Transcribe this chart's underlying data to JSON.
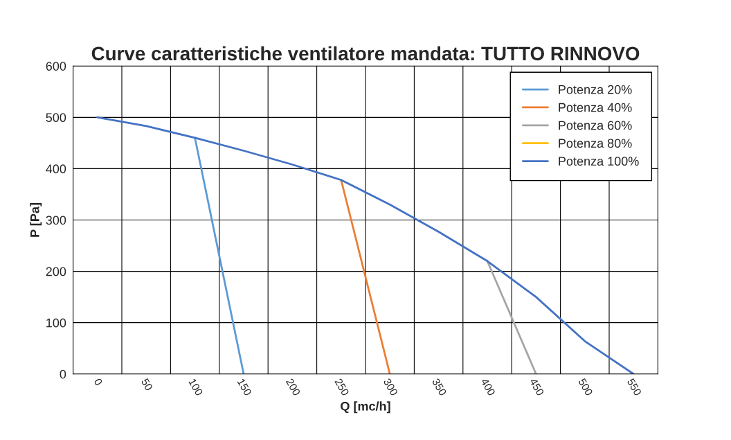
{
  "chart_data": {
    "type": "line",
    "title": "Curve caratteristiche ventilatore mandata: TUTTO RINNOVO",
    "xlabel": "Q [mc/h]",
    "ylabel": "P [Pa]",
    "xlim": [
      -25,
      575
    ],
    "xticks": [
      0,
      {
        "value": 25,
        "label": null
      },
      50,
      {
        "value": 75,
        "label": null
      },
      100,
      {
        "value": 125,
        "label": null
      },
      150,
      {
        "value": 175,
        "label": null
      },
      200,
      {
        "value": 225,
        "label": null
      },
      250,
      {
        "value": 275,
        "label": null
      },
      300,
      {
        "value": 325,
        "label": null
      },
      350,
      {
        "value": 375,
        "label": null
      },
      400,
      {
        "value": 425,
        "label": null
      },
      450,
      {
        "value": 475,
        "label": null
      },
      500,
      {
        "value": 525,
        "label": null
      },
      550
    ],
    "ylim": [
      0,
      600
    ],
    "yticks": [
      0,
      100,
      200,
      300,
      400,
      500,
      600
    ],
    "grid": true,
    "legend": "top right",
    "marker": "none",
    "line_style": "solid",
    "series": [
      {
        "name": "Potenza 20%",
        "color": "#5b9bd5",
        "x": [
          100,
          150
        ],
        "values": [
          460,
          0
        ]
      },
      {
        "name": "Potenza 40%",
        "color": "#ed7d31",
        "x": [
          250,
          300
        ],
        "values": [
          378,
          0
        ]
      },
      {
        "name": "Potenza 60%",
        "color": "#a5a5a5",
        "x": [
          400,
          450
        ],
        "values": [
          220,
          0
        ]
      },
      {
        "name": "Potenza 80%",
        "color": "#ffc000"
      },
      {
        "name": "Potenza 100%",
        "color": "#4472c4",
        "x": [
          0,
          50,
          100,
          150,
          200,
          250,
          300,
          350,
          400,
          450,
          500,
          550
        ],
        "values": [
          500,
          483,
          460,
          435,
          408,
          378,
          330,
          277,
          220,
          150,
          64,
          0
        ]
      }
    ]
  }
}
